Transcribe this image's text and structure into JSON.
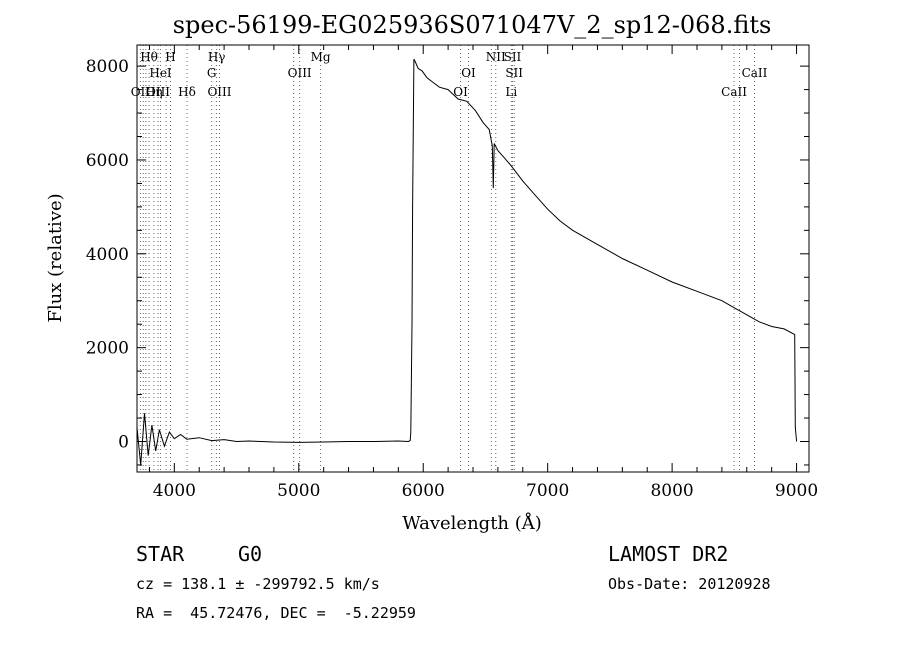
{
  "chart_data": {
    "type": "line",
    "title": "spec-56199-EG025936S071047V_2_sp12-068.fits",
    "xlabel": "Wavelength (Å)",
    "ylabel": "Flux (relative)",
    "xlim": [
      3700,
      9100
    ],
    "ylim": [
      -650,
      8450
    ],
    "x_ticks": [
      4000,
      5000,
      6000,
      7000,
      8000,
      9000
    ],
    "x_tick_labels": [
      "4000",
      "5000",
      "6000",
      "7000",
      "8000",
      "9000"
    ],
    "y_ticks": [
      0,
      2000,
      4000,
      6000,
      8000
    ],
    "y_tick_labels": [
      "0",
      "2000",
      "4000",
      "6000",
      "8000"
    ],
    "grid": false,
    "series": [
      {
        "color": "#000000",
        "x": [
          3700,
          3730,
          3760,
          3790,
          3820,
          3850,
          3880,
          3920,
          3960,
          4000,
          4050,
          4100,
          4200,
          4300,
          4400,
          4500,
          4600,
          4800,
          5000,
          5200,
          5400,
          5600,
          5800,
          5880,
          5895,
          5900,
          5910,
          5915,
          5925,
          5935,
          5960,
          5990,
          6030,
          6080,
          6130,
          6200,
          6280,
          6350,
          6420,
          6480,
          6530,
          6555,
          6563,
          6570,
          6600,
          6650,
          6700,
          6800,
          6900,
          7000,
          7100,
          7200,
          7400,
          7600,
          7800,
          8000,
          8200,
          8400,
          8500,
          8600,
          8700,
          8800,
          8900,
          8985,
          8990,
          9000
        ],
        "values": [
          300,
          -500,
          600,
          -300,
          350,
          -200,
          250,
          -100,
          200,
          60,
          150,
          50,
          80,
          20,
          40,
          0,
          10,
          -10,
          -20,
          -10,
          0,
          0,
          10,
          0,
          20,
          200,
          2500,
          5000,
          8150,
          8100,
          7950,
          7900,
          7750,
          7650,
          7550,
          7500,
          7300,
          7250,
          7050,
          6800,
          6650,
          6300,
          5400,
          6350,
          6200,
          6050,
          5900,
          5550,
          5250,
          4950,
          4700,
          4500,
          4200,
          3900,
          3650,
          3400,
          3200,
          3000,
          2850,
          2700,
          2550,
          2450,
          2400,
          2280,
          300,
          0
        ]
      }
    ],
    "line_markers": {
      "color": "#dd3333",
      "lines": [
        {
          "wavelength": 3727,
          "label": "OII",
          "row": 2
        },
        {
          "wavelength": 3750,
          "label": "",
          "row": 0
        },
        {
          "wavelength": 3771,
          "label": "",
          "row": 0
        },
        {
          "wavelength": 3797,
          "label": "Hθ",
          "row": 0
        },
        {
          "wavelength": 3835,
          "label": "Hη",
          "row": 2
        },
        {
          "wavelength": 3869,
          "label": "OIII",
          "row": 2
        },
        {
          "wavelength": 3889,
          "label": "HeI",
          "row": 1
        },
        {
          "wavelength": 3934,
          "label": "",
          "row": 0
        },
        {
          "wavelength": 3969,
          "label": "H",
          "row": 0
        },
        {
          "wavelength": 4102,
          "label": "Hδ",
          "row": 2
        },
        {
          "wavelength": 4300,
          "label": "G",
          "row": 1
        },
        {
          "wavelength": 4340,
          "label": "Hγ",
          "row": 0
        },
        {
          "wavelength": 4363,
          "label": "OIII",
          "row": 2
        },
        {
          "wavelength": 4959,
          "label": "",
          "row": 0
        },
        {
          "wavelength": 5007,
          "label": "OIII",
          "row": 1
        },
        {
          "wavelength": 5175,
          "label": "Mg",
          "row": 0
        },
        {
          "wavelength": 6300,
          "label": "OI",
          "row": 2
        },
        {
          "wavelength": 6364,
          "label": "OI",
          "row": 1
        },
        {
          "wavelength": 6548,
          "label": "",
          "row": 0
        },
        {
          "wavelength": 6583,
          "label": "NII",
          "row": 0
        },
        {
          "wavelength": 6708,
          "label": "Li",
          "row": 2
        },
        {
          "wavelength": 6717,
          "label": "SII",
          "row": 0
        },
        {
          "wavelength": 6731,
          "label": "SII",
          "row": 1
        },
        {
          "wavelength": 8498,
          "label": "CaII",
          "row": 2
        },
        {
          "wavelength": 8542,
          "label": "",
          "row": 0
        },
        {
          "wavelength": 8662,
          "label": "CaII",
          "row": 1
        }
      ]
    }
  },
  "footer": {
    "class_label": "STAR",
    "subclass": "G0",
    "survey": "LAMOST DR2",
    "velocity": "cz = 138.1 ± -299792.5 km/s",
    "obs_date": "Obs-Date: 20120928",
    "coords": "RA =  45.72476, DEC =  -5.22959"
  }
}
